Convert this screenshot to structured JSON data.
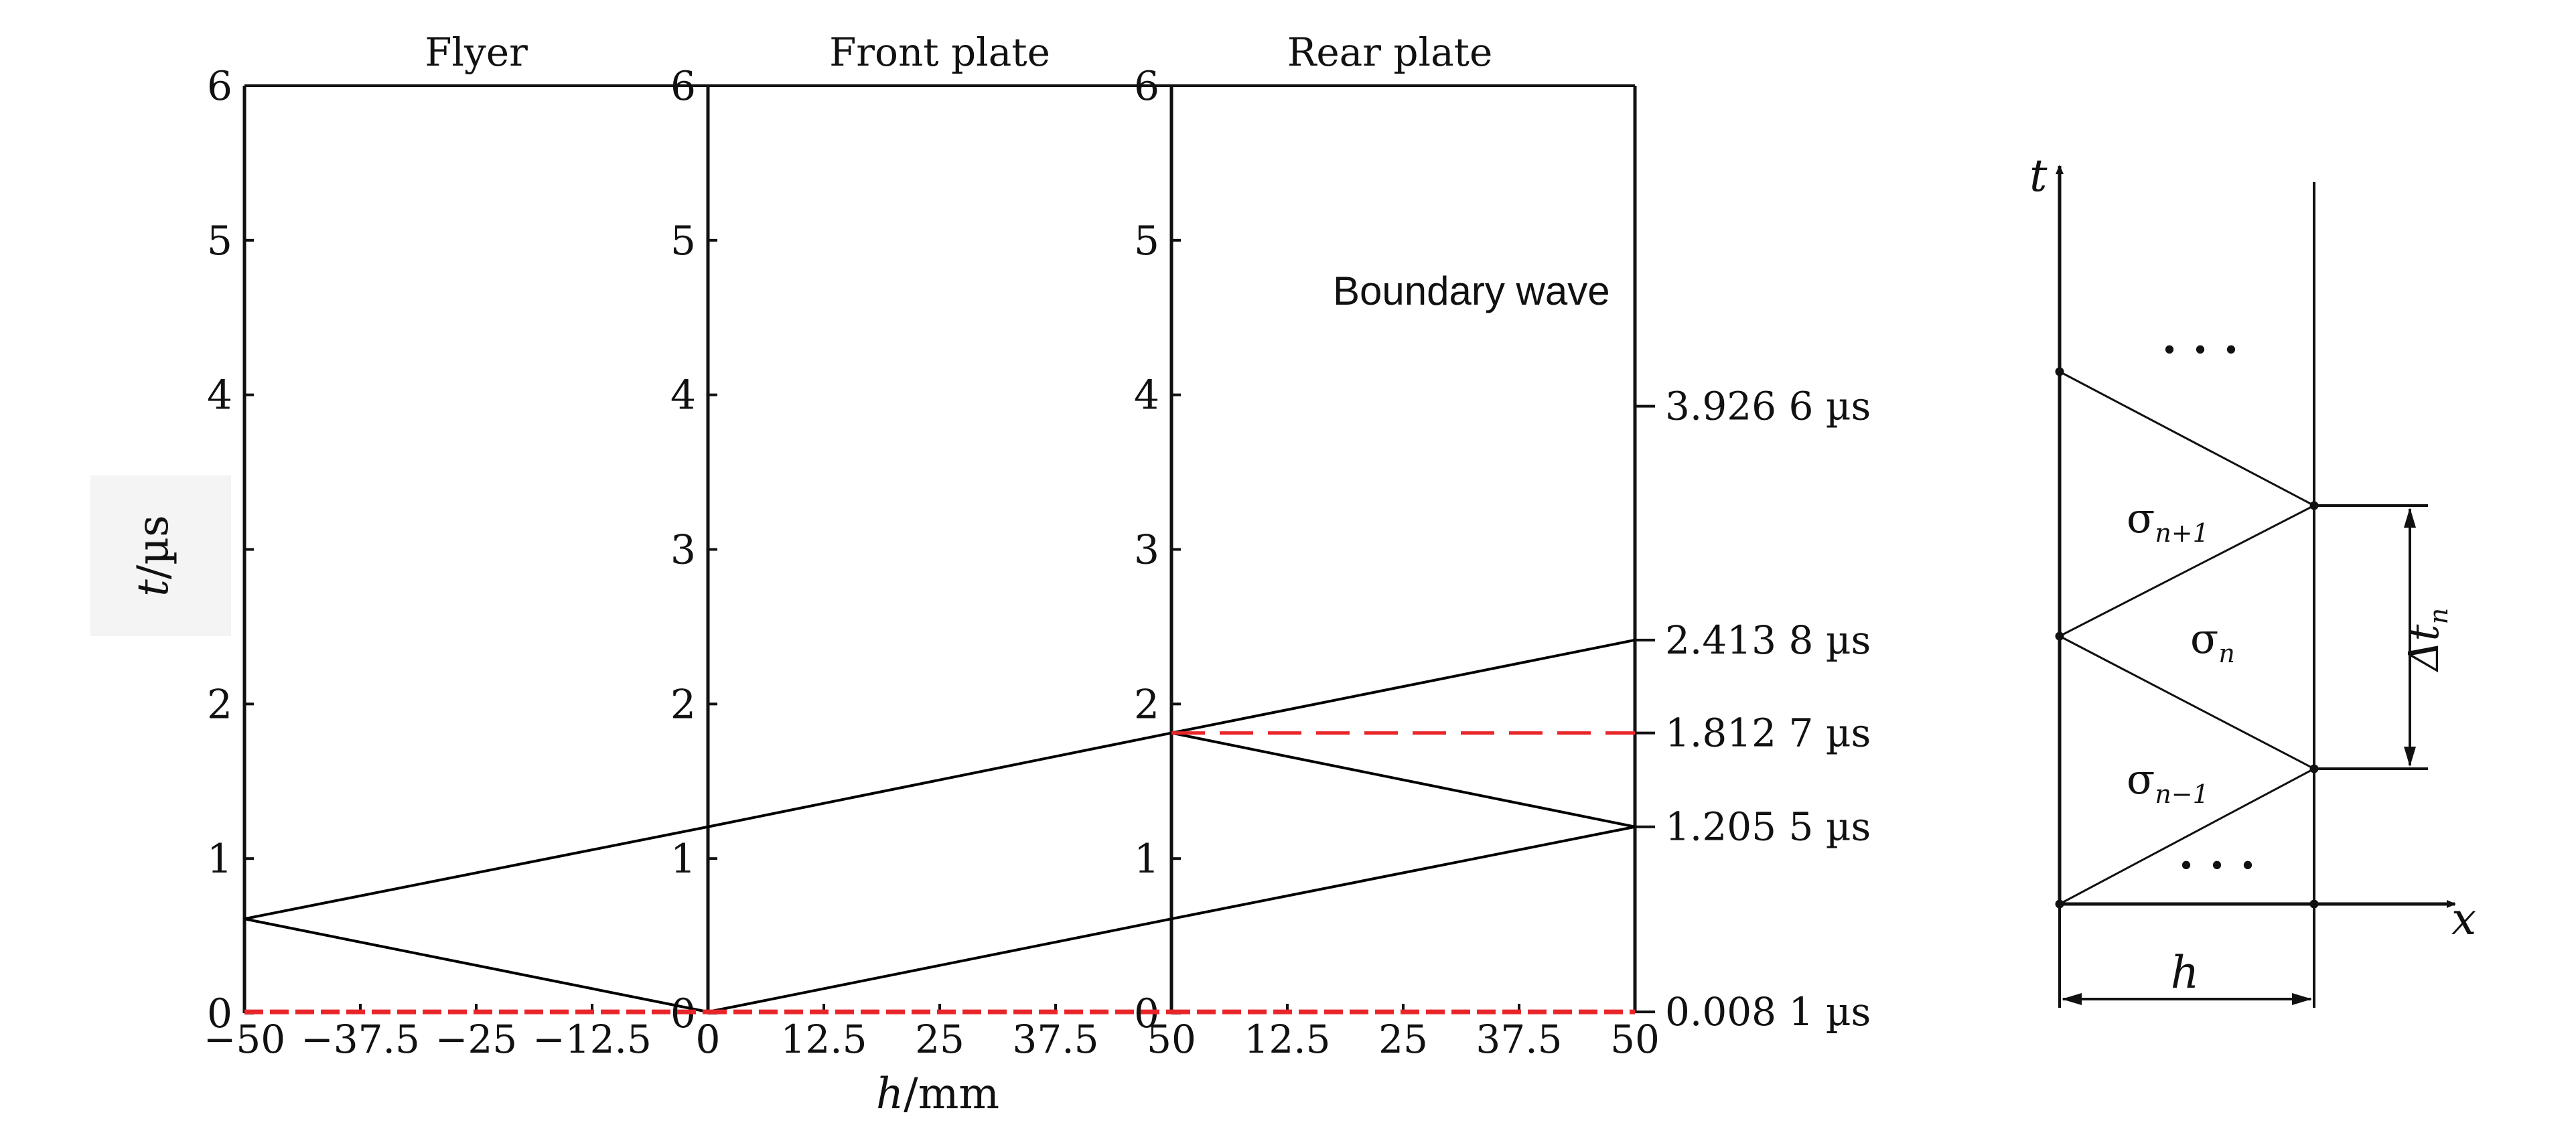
{
  "chart_data": [
    {
      "type": "line",
      "title": "",
      "xlabel": "h/mm",
      "xlabel_parts": {
        "variable": "h",
        "unit": "/mm"
      },
      "ylabel": "t/µs",
      "ylabel_parts": {
        "variable": "t",
        "unit": "/µs"
      },
      "ylim": [
        0,
        6
      ],
      "y_ticks": [
        0,
        1,
        2,
        3,
        4,
        5,
        6
      ],
      "grid": false,
      "panels": [
        {
          "name": "Flyer",
          "xlim": [
            -50,
            0
          ],
          "ticks": [
            -50,
            -37.5,
            -25,
            -12.5,
            0
          ],
          "tick_labels": [
            "−50",
            "−37.5",
            "−25",
            "−12.5",
            "0"
          ]
        },
        {
          "name": "Front plate",
          "xlim": [
            0,
            50
          ],
          "ticks": [
            0,
            12.5,
            25,
            37.5,
            50
          ],
          "tick_labels": [
            "0",
            "12.5",
            "25",
            "37.5",
            "50"
          ]
        },
        {
          "name": "Rear plate",
          "xlim": [
            0,
            50
          ],
          "ticks": [
            12.5,
            25,
            37.5,
            50
          ],
          "tick_labels": [
            "12.5",
            "25",
            "37.5",
            "50"
          ]
        }
      ],
      "annotation": "Boundary wave",
      "right_labels": [
        {
          "t": 3.9266,
          "label": "3.926 6 µs"
        },
        {
          "t": 2.4138,
          "label": "2.413 8 µs"
        },
        {
          "t": 1.8127,
          "label": "1.812 7 µs"
        },
        {
          "t": 1.2055,
          "label": "1.205 5 µs"
        },
        {
          "t": 0.0081,
          "label": "0.008 1 µs"
        }
      ],
      "series": [
        {
          "color": "#000000",
          "style": "solid",
          "segments": [
            [
              [
                -50,
                0.61
              ],
              [
                0,
                0.0081
              ]
            ],
            [
              [
                -50,
                0.61
              ],
              [
                0,
                1.2055
              ]
            ],
            [
              [
                0,
                1.2055
              ],
              [
                50,
                1.8127
              ]
            ],
            [
              [
                50,
                1.8127
              ],
              [
                100,
                2.4138
              ]
            ],
            [
              [
                0,
                0.0081
              ],
              [
                50,
                0.61
              ]
            ],
            [
              [
                50,
                0.61
              ],
              [
                100,
                1.2055
              ]
            ],
            [
              [
                50,
                1.8127
              ],
              [
                100,
                1.2055
              ]
            ]
          ]
        },
        {
          "color": "#e8262a",
          "style": "dashed",
          "segments": [
            [
              [
                50,
                1.8127
              ],
              [
                100,
                1.8127
              ]
            ],
            [
              [
                -50,
                0.0081
              ],
              [
                0,
                0.0081
              ]
            ],
            [
              [
                0,
                0.0081
              ],
              [
                50,
                0.0081
              ]
            ],
            [
              [
                50,
                0.0081
              ],
              [
                100,
                0.0081
              ]
            ]
          ]
        }
      ]
    },
    {
      "type": "diagram",
      "axis_labels": {
        "vertical": "t",
        "horizontal": "x"
      },
      "width_label": "h",
      "region_labels": [
        {
          "name": "σ",
          "sub": "n+1"
        },
        {
          "name": "σ",
          "sub": "n"
        },
        {
          "name": "σ",
          "sub": "n−1"
        }
      ],
      "interval_label": {
        "name": "Δt",
        "sub": "n"
      },
      "ellipsis": "· · ·"
    }
  ]
}
